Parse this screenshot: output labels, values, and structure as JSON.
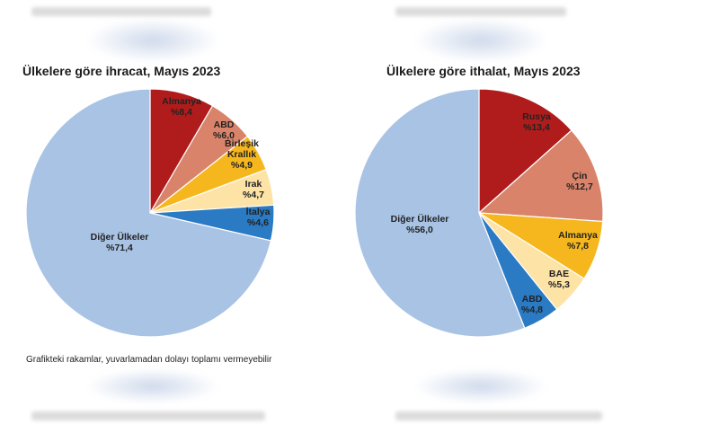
{
  "chart_data": [
    {
      "type": "pie",
      "title": "Ülkelere göre ihracat, Mayıs 2023",
      "categories": [
        "Almanya",
        "ABD",
        "Birleşik Krallık",
        "Irak",
        "İtalya",
        "Diğer Ülkeler"
      ],
      "values": [
        8.4,
        6.0,
        4.9,
        4.7,
        4.6,
        71.4
      ],
      "labels": [
        "%8,4",
        "%6,0",
        "%4,9",
        "%4,7",
        "%4,6",
        "%71,4"
      ],
      "label_lines": [
        [
          "Almanya"
        ],
        [
          "ABD"
        ],
        [
          "Birleşik",
          "Krallık"
        ],
        [
          "Irak"
        ],
        [
          "İtalya"
        ],
        [
          "Diğer Ülkeler"
        ]
      ],
      "colors": [
        "#b01c1c",
        "#d9846a",
        "#f5b71d",
        "#fde3a6",
        "#2a7ac4",
        "#a9c3e5"
      ]
    },
    {
      "type": "pie",
      "title": "Ülkelere göre ithalat, Mayıs 2023",
      "categories": [
        "Rusya",
        "Çin",
        "Almanya",
        "BAE",
        "ABD",
        "Diğer Ülkeler"
      ],
      "values": [
        13.4,
        12.7,
        7.8,
        5.3,
        4.8,
        56.0
      ],
      "labels": [
        "%13,4",
        "%12,7",
        "%7,8",
        "%5,3",
        "%4,8",
        "%56,0"
      ],
      "label_lines": [
        [
          "Rusya"
        ],
        [
          "Çin"
        ],
        [
          "Almanya"
        ],
        [
          "BAE"
        ],
        [
          "ABD"
        ],
        [
          "Diğer Ülkeler"
        ]
      ],
      "colors": [
        "#b01c1c",
        "#d9846a",
        "#f5b71d",
        "#fde3a6",
        "#2a7ac4",
        "#a9c3e5"
      ]
    }
  ],
  "footnote": "Grafikteki rakamlar, yuvarlamadan dolayı toplamı vermeyebilir"
}
